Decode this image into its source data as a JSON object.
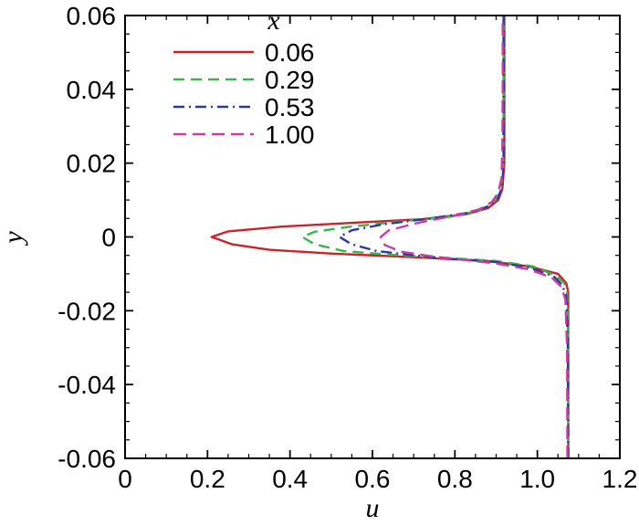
{
  "chart_data": {
    "type": "line",
    "xlabel": "u",
    "ylabel": "y",
    "xlim": [
      0,
      1.2
    ],
    "ylim": [
      -0.06,
      0.06
    ],
    "x_ticks": [
      "0",
      "0.2",
      "0.4",
      "0.6",
      "0.8",
      "1.0",
      "1.2"
    ],
    "y_ticks": [
      "0.06",
      "0.04",
      "0.02",
      "0",
      "-0.02",
      "-0.04",
      "-0.06"
    ],
    "legend_title": "x",
    "legend_position": "top-left",
    "grid": false,
    "series": [
      {
        "name": "0.06",
        "color": "#c8252b",
        "dash": "solid",
        "points": [
          [
            1.075,
            -0.06
          ],
          [
            1.075,
            -0.03
          ],
          [
            1.075,
            -0.015
          ],
          [
            1.07,
            -0.0125
          ],
          [
            1.05,
            -0.01
          ],
          [
            0.98,
            -0.008
          ],
          [
            0.88,
            -0.0065
          ],
          [
            0.7,
            -0.0055
          ],
          [
            0.5,
            -0.0045
          ],
          [
            0.35,
            -0.0035
          ],
          [
            0.26,
            -0.002
          ],
          [
            0.21,
            0
          ],
          [
            0.25,
            0.0015
          ],
          [
            0.38,
            0.0028
          ],
          [
            0.55,
            0.0038
          ],
          [
            0.72,
            0.0048
          ],
          [
            0.83,
            0.0062
          ],
          [
            0.88,
            0.0078
          ],
          [
            0.905,
            0.01
          ],
          [
            0.915,
            0.013
          ],
          [
            0.92,
            0.02
          ],
          [
            0.92,
            0.035
          ],
          [
            0.92,
            0.06
          ]
        ]
      },
      {
        "name": "0.29",
        "color": "#3cb44b",
        "dash": "12,7",
        "points": [
          [
            1.075,
            -0.06
          ],
          [
            1.075,
            -0.03
          ],
          [
            1.072,
            -0.015
          ],
          [
            1.065,
            -0.0125
          ],
          [
            1.045,
            -0.0105
          ],
          [
            0.99,
            -0.008
          ],
          [
            0.9,
            -0.0065
          ],
          [
            0.78,
            -0.0057
          ],
          [
            0.64,
            -0.0048
          ],
          [
            0.53,
            -0.0038
          ],
          [
            0.46,
            -0.002
          ],
          [
            0.43,
            0
          ],
          [
            0.46,
            0.0014
          ],
          [
            0.54,
            0.0027
          ],
          [
            0.67,
            0.0042
          ],
          [
            0.79,
            0.0055
          ],
          [
            0.86,
            0.0072
          ],
          [
            0.89,
            0.009
          ],
          [
            0.91,
            0.012
          ],
          [
            0.917,
            0.02
          ],
          [
            0.918,
            0.035
          ],
          [
            0.918,
            0.06
          ]
        ]
      },
      {
        "name": "0.53",
        "color": "#2b3a9e",
        "dash": "12,5,2,5",
        "points": [
          [
            1.075,
            -0.06
          ],
          [
            1.074,
            -0.03
          ],
          [
            1.07,
            -0.016
          ],
          [
            1.06,
            -0.013
          ],
          [
            1.04,
            -0.0107
          ],
          [
            0.98,
            -0.0083
          ],
          [
            0.9,
            -0.0068
          ],
          [
            0.8,
            -0.006
          ],
          [
            0.7,
            -0.005
          ],
          [
            0.61,
            -0.0038
          ],
          [
            0.55,
            -0.002
          ],
          [
            0.52,
            0
          ],
          [
            0.55,
            0.0018
          ],
          [
            0.63,
            0.0035
          ],
          [
            0.74,
            0.005
          ],
          [
            0.83,
            0.0065
          ],
          [
            0.88,
            0.0082
          ],
          [
            0.905,
            0.0105
          ],
          [
            0.915,
            0.014
          ],
          [
            0.918,
            0.02
          ],
          [
            0.918,
            0.035
          ],
          [
            0.918,
            0.06
          ]
        ]
      },
      {
        "name": "1.00",
        "color": "#c83ca8",
        "dash": "14,7",
        "points": [
          [
            1.073,
            -0.06
          ],
          [
            1.072,
            -0.03
          ],
          [
            1.068,
            -0.017
          ],
          [
            1.058,
            -0.0135
          ],
          [
            1.035,
            -0.011
          ],
          [
            0.98,
            -0.0088
          ],
          [
            0.9,
            -0.0072
          ],
          [
            0.82,
            -0.0062
          ],
          [
            0.74,
            -0.0052
          ],
          [
            0.67,
            -0.004
          ],
          [
            0.63,
            -0.0022
          ],
          [
            0.62,
            0
          ],
          [
            0.64,
            0.0018
          ],
          [
            0.71,
            0.0038
          ],
          [
            0.8,
            0.0058
          ],
          [
            0.86,
            0.0075
          ],
          [
            0.89,
            0.0095
          ],
          [
            0.905,
            0.012
          ],
          [
            0.913,
            0.016
          ],
          [
            0.915,
            0.025
          ],
          [
            0.916,
            0.04
          ],
          [
            0.916,
            0.06
          ]
        ]
      }
    ]
  }
}
